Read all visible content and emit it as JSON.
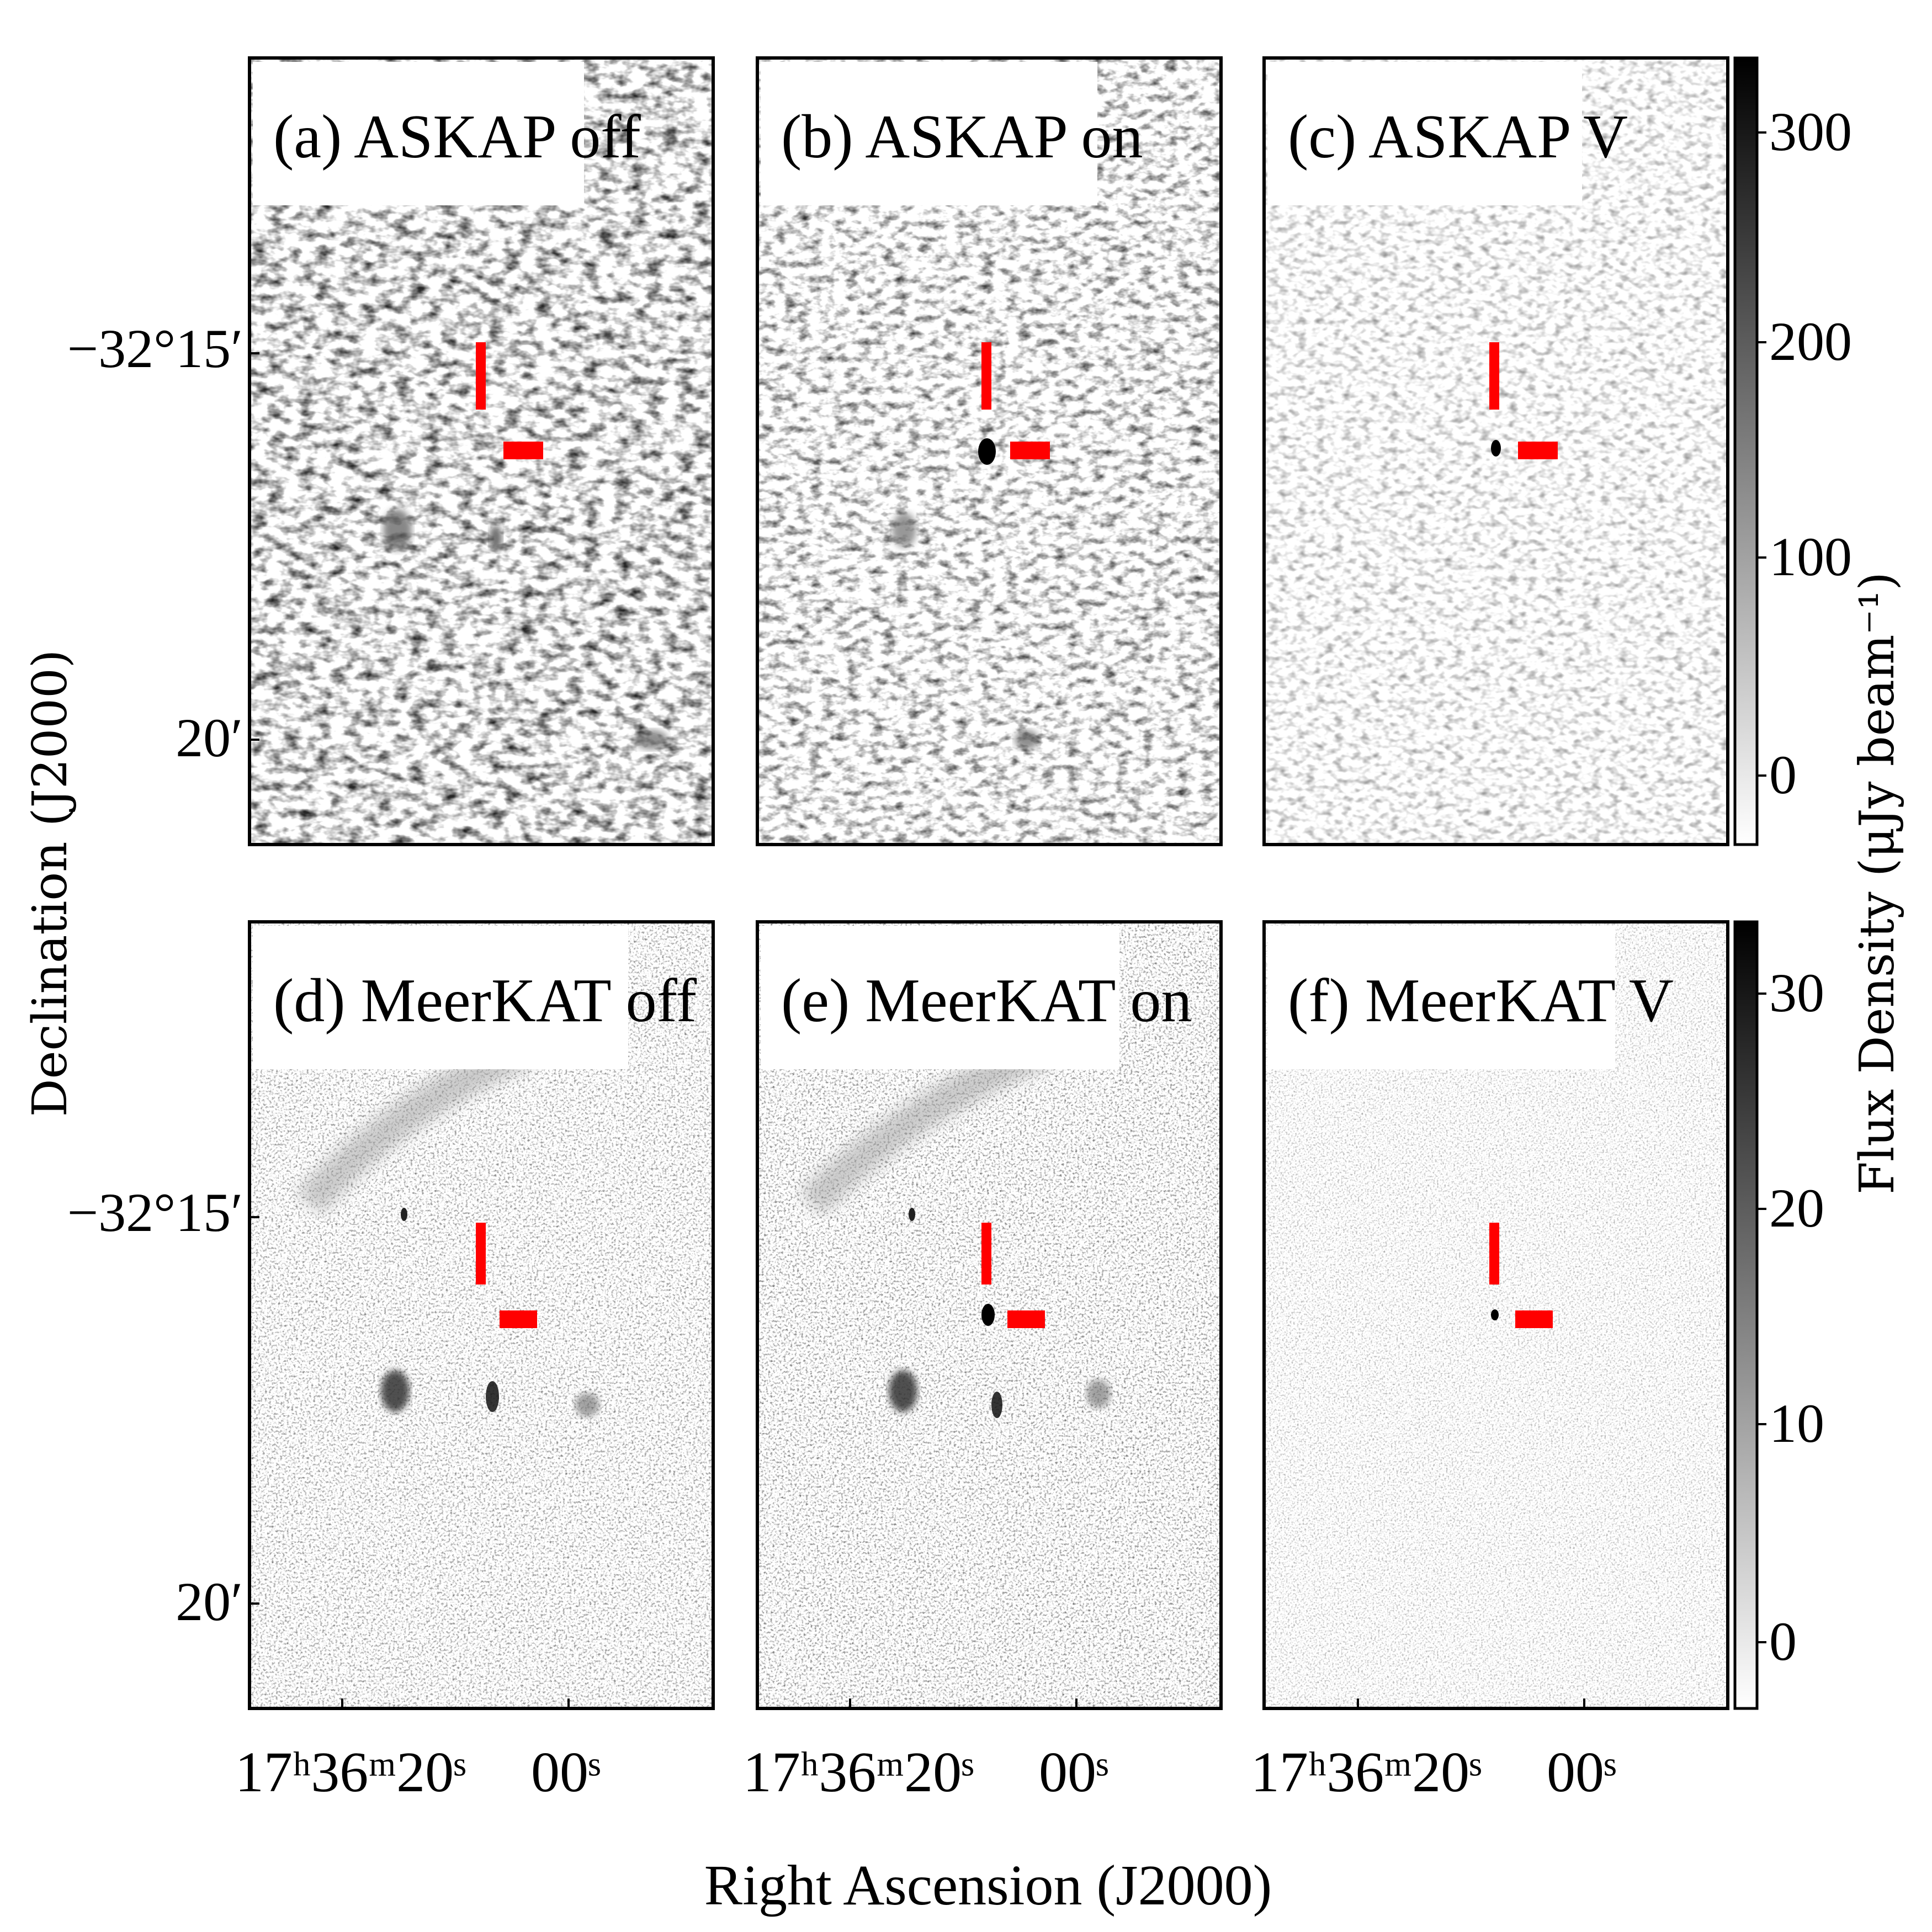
{
  "figure": {
    "xlabel": "Right Ascension (J2000)",
    "ylabel": "Declination (J2000)",
    "colorbar_label": "Flux Density (μJy beam⁻¹)",
    "ytick_labels": [
      "−32°15′",
      "20′"
    ],
    "xtick_labels": [
      "17ʰ36ᵐ20ˢ",
      "00ˢ"
    ],
    "marker_color": "#ff0000",
    "colormap": "grayscale (white low, black high)"
  },
  "panels": [
    {
      "label": "(a) ASKAP off",
      "row": 1,
      "col": 1
    },
    {
      "label": "(b) ASKAP on",
      "row": 1,
      "col": 2
    },
    {
      "label": "(c) ASKAP V",
      "row": 1,
      "col": 3
    },
    {
      "label": "(d) MeerKAT off",
      "row": 2,
      "col": 1
    },
    {
      "label": "(e) MeerKAT on",
      "row": 2,
      "col": 2
    },
    {
      "label": "(f) MeerKAT V",
      "row": 2,
      "col": 3
    }
  ],
  "colorbars": [
    {
      "instrument": "ASKAP",
      "ticks": [
        "300",
        "200",
        "100",
        "0"
      ]
    },
    {
      "instrument": "MeerKAT",
      "ticks": [
        "30",
        "20",
        "10",
        "0"
      ]
    }
  ]
}
